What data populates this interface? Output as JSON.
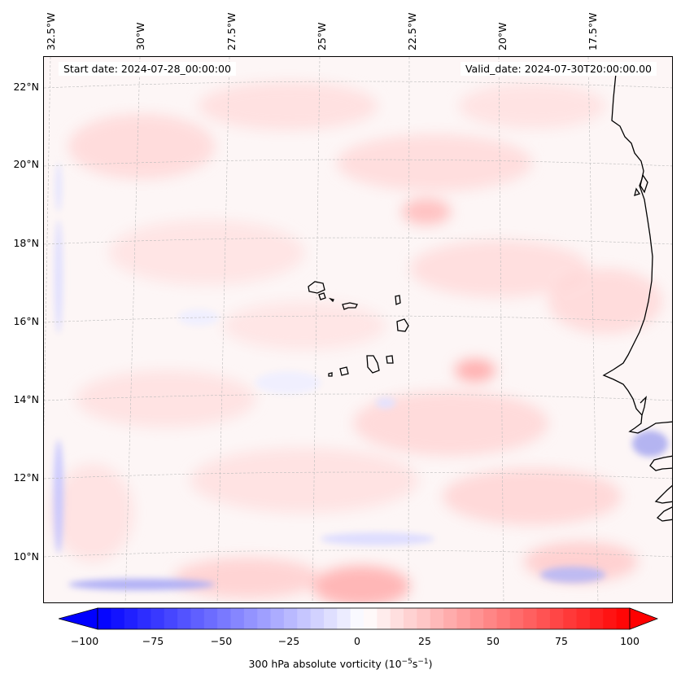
{
  "map": {
    "start_date": "Start date: 2024-07-28_00:00:00",
    "valid_date": "Valid_date: 2024-07-30T20:00:00.00",
    "lon_labels": [
      "32.5°W",
      "30°W",
      "27.5°W",
      "25°W",
      "22.5°W",
      "20°W",
      "17.5°W"
    ],
    "lat_labels": [
      "22°N",
      "20°N",
      "18°N",
      "16°N",
      "14°N",
      "12°N",
      "10°N"
    ],
    "field": "300 hPa absolute vorticity",
    "region": "Cabo Verde / West Africa coast",
    "gridlines": true
  },
  "colorbar": {
    "ticks": [
      "−100",
      "−75",
      "−50",
      "−25",
      "0",
      "25",
      "50",
      "75",
      "100"
    ],
    "label_prefix": "300 hPa absolute vorticity (10",
    "label_exp1": "−5",
    "label_mid": "s",
    "label_exp2": "−1",
    "label_suffix": ")",
    "min": -100,
    "max": 100,
    "step": 5,
    "colormap": "bwr",
    "extend": "both"
  },
  "colors": {
    "negative_end": "#0000ff",
    "zero": "#ffffff",
    "positive_end": "#ff0000",
    "coastline": "#000000",
    "gridline": "#bbbbbb"
  }
}
